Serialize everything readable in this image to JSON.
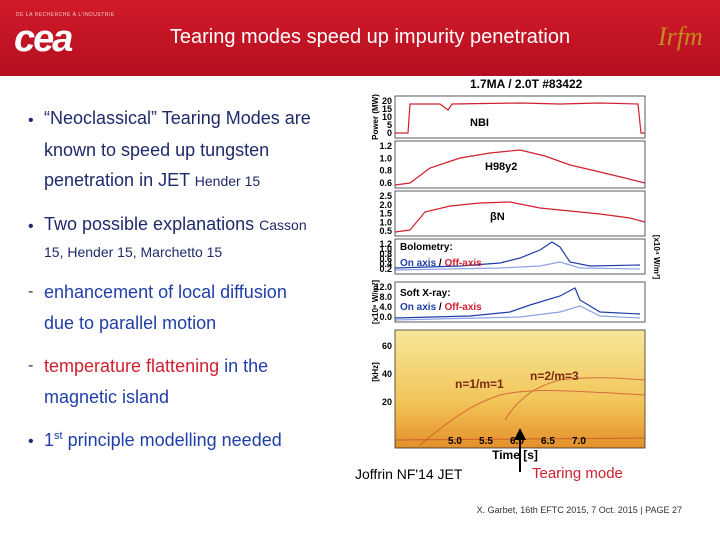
{
  "header": {
    "org_tagline": "DE LA RECHERCHE À L'INDUSTRIE",
    "org_logo": "cea",
    "title": "Tearing modes speed up impurity penetration",
    "partner_logo": "Irfm"
  },
  "bullets": [
    {
      "marker": "•",
      "lines": [
        [
          "“Neoclassical” Tearing Modes are"
        ],
        [
          "known to speed up tungsten"
        ],
        [
          "penetration in JET",
          "Hender 15"
        ]
      ]
    },
    {
      "marker": "•",
      "lines": [
        [
          "Two possible explanations",
          "Casson"
        ],
        [
          "15, Hender 15, Marchetto 15"
        ]
      ]
    },
    {
      "marker": "-",
      "lines": [
        [
          "enhancement of local diffusion"
        ],
        [
          "due to parallel motion"
        ]
      ]
    },
    {
      "marker": "-",
      "lines": [
        [
          "temperature flattening",
          " in the"
        ],
        [
          "magnetic island"
        ]
      ]
    },
    {
      "marker": "•",
      "lines": [
        [
          "1",
          "st",
          " principle modelling needed"
        ]
      ]
    }
  ],
  "figure": {
    "title": "1.7MA / 2.0T  #83422",
    "panels": [
      {
        "ylabel": "Power (MW)",
        "labels": [
          "NBI"
        ],
        "ticks": [
          "20",
          "15",
          "10",
          "5",
          "0"
        ]
      },
      {
        "labels": [
          "H98y2"
        ],
        "ticks": [
          "1.2",
          "1.0",
          "0.8",
          "0.6"
        ]
      },
      {
        "labels": [
          "βN"
        ],
        "ticks": [
          "2.5",
          "2.0",
          "1.5",
          "1.0",
          "0.5"
        ]
      },
      {
        "ylabel": "[x10⁴ W/m²]",
        "labels": [
          "Bolometry:",
          "On axis",
          " / ",
          "Off-axis"
        ],
        "ticks": [
          "1.2",
          "1.0",
          "0.8",
          "0.6",
          "0.4",
          "0.2"
        ]
      },
      {
        "ylabel": "[x10⁶ W/m²]",
        "labels": [
          "Soft X-ray:",
          "On axis",
          " / ",
          "Off-axis"
        ],
        "ticks": [
          "12.0",
          "8.0",
          "4.0",
          "0.0"
        ]
      },
      {
        "ylabel": "[kHz]",
        "labels": [
          "n=1/m=1",
          "n=2/m=3"
        ],
        "ticks": [
          "60",
          "40",
          "20"
        ]
      }
    ],
    "xticks": [
      "5.0",
      "5.5",
      "6.0",
      "6.5",
      "7.0"
    ],
    "xlabel": "Time [s]",
    "caption": "Joffrin NF'14 JET",
    "annotation": "Tearing mode"
  },
  "footer": {
    "text": "X. Garbet, 16th EFTC 2015, 7 Oct. 2015",
    "separator": "|",
    "page": "PAGE 27"
  }
}
